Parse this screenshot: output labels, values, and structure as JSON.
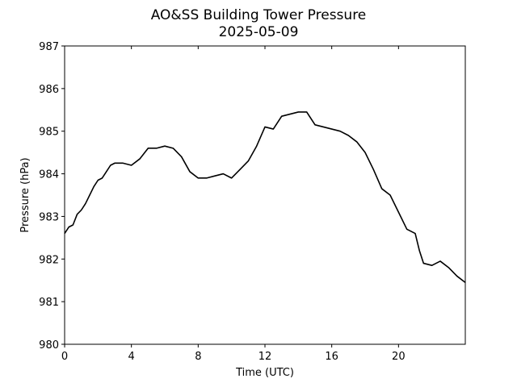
{
  "chart_data": {
    "type": "line",
    "title": "AO&SS Building Tower Pressure",
    "subtitle": "2025-05-09",
    "x_label": "Time (UTC)",
    "y_label": "Pressure (hPa)",
    "xlim": [
      0,
      24
    ],
    "xticks": [
      0,
      4,
      8,
      12,
      16,
      20
    ],
    "ylim": [
      980,
      987
    ],
    "yticks": [
      980,
      981,
      982,
      983,
      984,
      985,
      986,
      987
    ],
    "grid": false,
    "series": [
      {
        "name": "Pressure",
        "color": "#000000",
        "x": [
          0,
          0.25,
          0.5,
          0.75,
          1,
          1.25,
          1.5,
          1.75,
          2,
          2.25,
          2.5,
          2.75,
          3,
          3.5,
          4,
          4.5,
          5,
          5.5,
          6,
          6.5,
          7,
          7.5,
          8,
          8.5,
          9,
          9.5,
          10,
          10.5,
          11,
          11.5,
          12,
          12.5,
          13,
          13.5,
          14,
          14.5,
          15,
          15.5,
          16,
          16.5,
          17,
          17.5,
          18,
          18.5,
          19,
          19.5,
          20,
          20.5,
          21,
          21.25,
          21.5,
          22,
          22.5,
          23,
          23.5,
          24
        ],
        "values": [
          982.6,
          982.75,
          982.8,
          983.05,
          983.15,
          983.3,
          983.5,
          983.7,
          983.85,
          983.9,
          984.05,
          984.2,
          984.25,
          984.25,
          984.2,
          984.35,
          984.6,
          984.6,
          984.65,
          984.6,
          984.4,
          984.05,
          983.9,
          983.9,
          983.95,
          984.0,
          983.9,
          984.1,
          984.3,
          984.65,
          985.1,
          985.05,
          985.35,
          985.4,
          985.45,
          985.45,
          985.15,
          985.1,
          985.05,
          985.0,
          984.9,
          984.75,
          984.5,
          984.1,
          983.65,
          983.5,
          983.1,
          982.7,
          982.6,
          982.2,
          981.9,
          981.85,
          981.95,
          981.8,
          981.6,
          981.45
        ]
      }
    ]
  }
}
